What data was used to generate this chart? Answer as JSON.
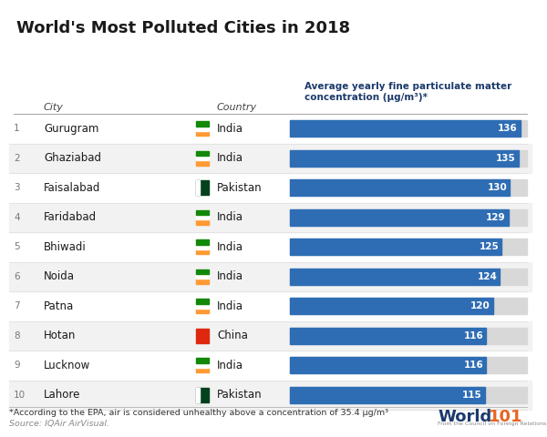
{
  "title": "World's Most Polluted Cities in 2018",
  "cities": [
    "Gurugram",
    "Ghaziabad",
    "Faisalabad",
    "Faridabad",
    "Bhiwadi",
    "Noida",
    "Patna",
    "Hotan",
    "Lucknow",
    "Lahore"
  ],
  "countries": [
    "India",
    "India",
    "Pakistan",
    "India",
    "India",
    "India",
    "India",
    "China",
    "India",
    "Pakistan"
  ],
  "values": [
    136,
    135,
    130,
    129,
    125,
    124,
    120,
    116,
    116,
    115
  ],
  "ranks": [
    1,
    2,
    3,
    4,
    5,
    6,
    7,
    8,
    9,
    10
  ],
  "bar_color": "#2E6DB4",
  "bar_bg_color": "#D8D8D8",
  "header_color": "#1B3A6B",
  "background_color": "#FFFFFF",
  "row_even_color": "#F2F2F2",
  "col_header_label": "Average yearly fine particulate matter\nconcentration (μg/m³)*",
  "footnote": "*According to the EPA, air is considered unhealthy above a concentration of 35.4 μg/m³",
  "source": "Source: IQAir AirVisual.",
  "flag_india": [
    "#FF9933",
    "#FFFFFF",
    "#138808"
  ],
  "flag_pakistan_green": "#01411C",
  "flag_china_red": "#DE2910",
  "world101_navy": "#1B3A6B",
  "world101_orange": "#E86522",
  "world101_gray": "#888888"
}
